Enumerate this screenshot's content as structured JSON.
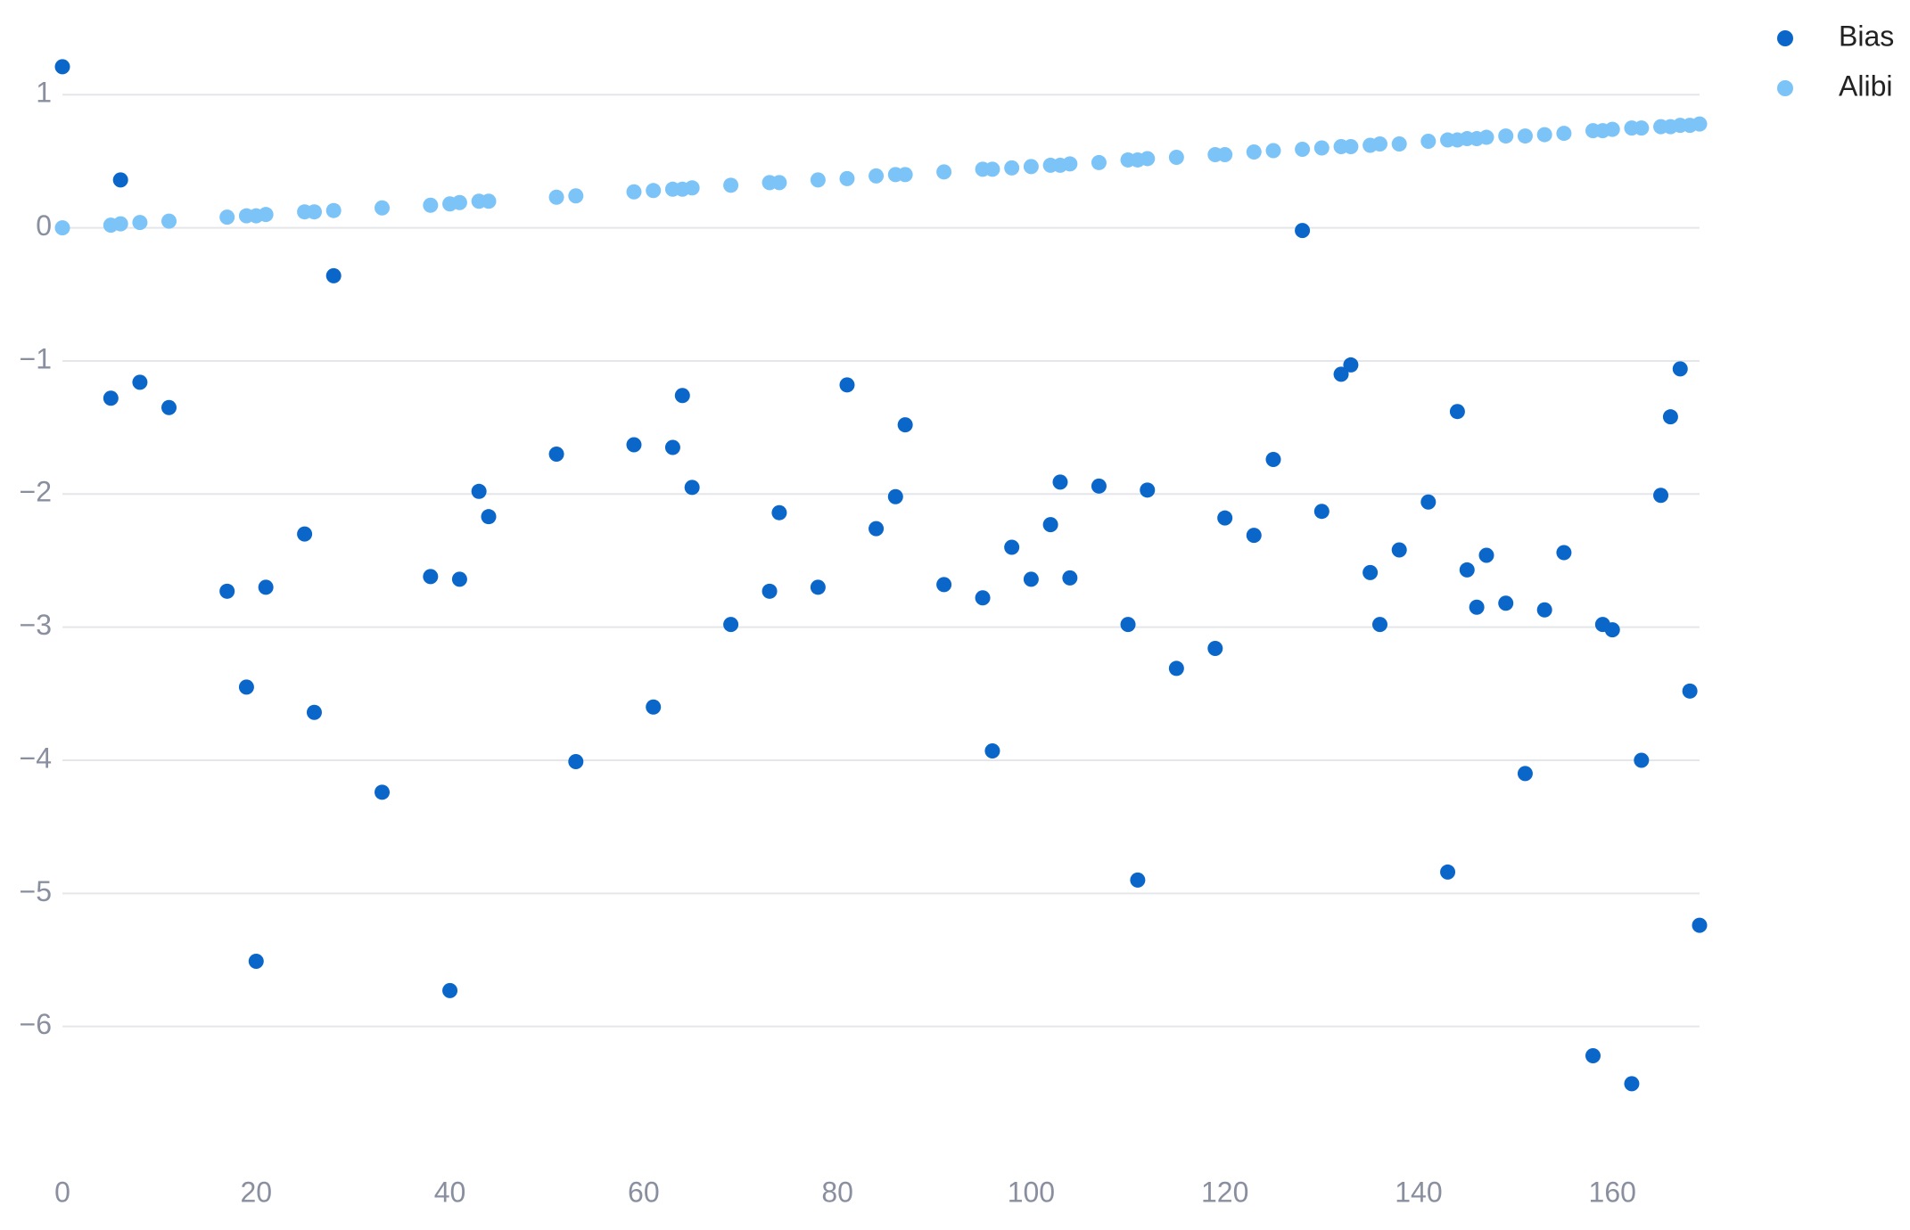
{
  "chart_data": {
    "type": "scatter",
    "xlim": [
      0,
      169
    ],
    "ylim": [
      -7,
      1.35
    ],
    "xticks": [
      0,
      20,
      40,
      60,
      80,
      100,
      120,
      140,
      160
    ],
    "yticks": [
      {
        "value": -6,
        "label": "−6"
      },
      {
        "value": -5,
        "label": "−5"
      },
      {
        "value": -4,
        "label": "−4"
      },
      {
        "value": -3,
        "label": "−3"
      },
      {
        "value": -2,
        "label": "−2"
      },
      {
        "value": -1,
        "label": "−1"
      },
      0,
      1
    ],
    "grid": true,
    "legend": "top-right",
    "series": [
      {
        "name": "Bias",
        "color": "#0a66c9",
        "x": [
          0,
          5,
          6,
          8,
          11,
          17,
          19,
          20,
          21,
          25,
          26,
          28,
          33,
          38,
          40,
          41,
          43,
          44,
          51,
          53,
          59,
          61,
          63,
          64,
          65,
          69,
          73,
          74,
          78,
          81,
          84,
          86,
          87,
          91,
          95,
          96,
          98,
          100,
          102,
          103,
          104,
          107,
          110,
          111,
          112,
          115,
          119,
          120,
          123,
          125,
          128,
          130,
          132,
          133,
          135,
          136,
          138,
          141,
          143,
          144,
          145,
          146,
          147,
          149,
          151,
          153,
          155,
          158,
          159,
          160,
          162,
          163,
          165,
          166,
          167,
          168,
          169
        ],
        "values": [
          1.21,
          -1.28,
          0.36,
          -1.16,
          -1.35,
          -2.73,
          -3.45,
          -5.51,
          -2.7,
          -2.3,
          -3.64,
          -0.36,
          -4.24,
          -2.62,
          -5.73,
          -2.64,
          -1.98,
          -2.17,
          -1.7,
          -4.01,
          -1.63,
          -3.6,
          -1.65,
          -1.26,
          -1.95,
          -2.98,
          -2.73,
          -2.14,
          -2.7,
          -1.18,
          -2.26,
          -2.02,
          -1.48,
          -2.68,
          -2.78,
          -3.93,
          -2.4,
          -2.64,
          -2.23,
          -1.91,
          -2.63,
          -1.94,
          -2.98,
          -4.9,
          -1.97,
          -3.31,
          -3.16,
          -2.18,
          -2.31,
          -1.74,
          -0.02,
          -2.13,
          -1.1,
          -1.03,
          -2.59,
          -2.98,
          -2.42,
          -2.06,
          -4.84,
          -1.38,
          -2.57,
          -2.85,
          -2.46,
          -2.82,
          -4.1,
          -2.87,
          -2.44,
          -6.22,
          -2.98,
          -3.02,
          -6.43,
          -4.0,
          -2.01,
          -1.42,
          -1.06,
          -3.48,
          -5.24
        ]
      },
      {
        "name": "Alibi",
        "color": "#7cc4f8",
        "x": [
          0,
          5,
          6,
          8,
          11,
          17,
          19,
          20,
          21,
          25,
          26,
          28,
          33,
          38,
          40,
          41,
          43,
          44,
          51,
          53,
          59,
          61,
          63,
          64,
          65,
          69,
          73,
          74,
          78,
          81,
          84,
          86,
          87,
          91,
          95,
          96,
          98,
          100,
          102,
          103,
          104,
          107,
          110,
          111,
          112,
          115,
          119,
          120,
          123,
          125,
          128,
          130,
          132,
          133,
          135,
          136,
          138,
          141,
          143,
          144,
          145,
          146,
          147,
          149,
          151,
          153,
          155,
          158,
          159,
          160,
          162,
          163,
          165,
          166,
          167,
          168,
          169
        ],
        "values": [
          0,
          0.02,
          0.03,
          0.04,
          0.05,
          0.08,
          0.09,
          0.09,
          0.1,
          0.12,
          0.12,
          0.13,
          0.15,
          0.17,
          0.18,
          0.19,
          0.2,
          0.2,
          0.23,
          0.24,
          0.27,
          0.28,
          0.29,
          0.29,
          0.3,
          0.32,
          0.34,
          0.34,
          0.36,
          0.37,
          0.39,
          0.4,
          0.4,
          0.42,
          0.44,
          0.44,
          0.45,
          0.46,
          0.47,
          0.47,
          0.48,
          0.49,
          0.51,
          0.51,
          0.52,
          0.53,
          0.55,
          0.55,
          0.57,
          0.58,
          0.59,
          0.6,
          0.61,
          0.61,
          0.62,
          0.63,
          0.63,
          0.65,
          0.66,
          0.66,
          0.67,
          0.67,
          0.68,
          0.69,
          0.69,
          0.7,
          0.71,
          0.73,
          0.73,
          0.74,
          0.75,
          0.75,
          0.76,
          0.76,
          0.77,
          0.77,
          0.78
        ]
      }
    ]
  }
}
